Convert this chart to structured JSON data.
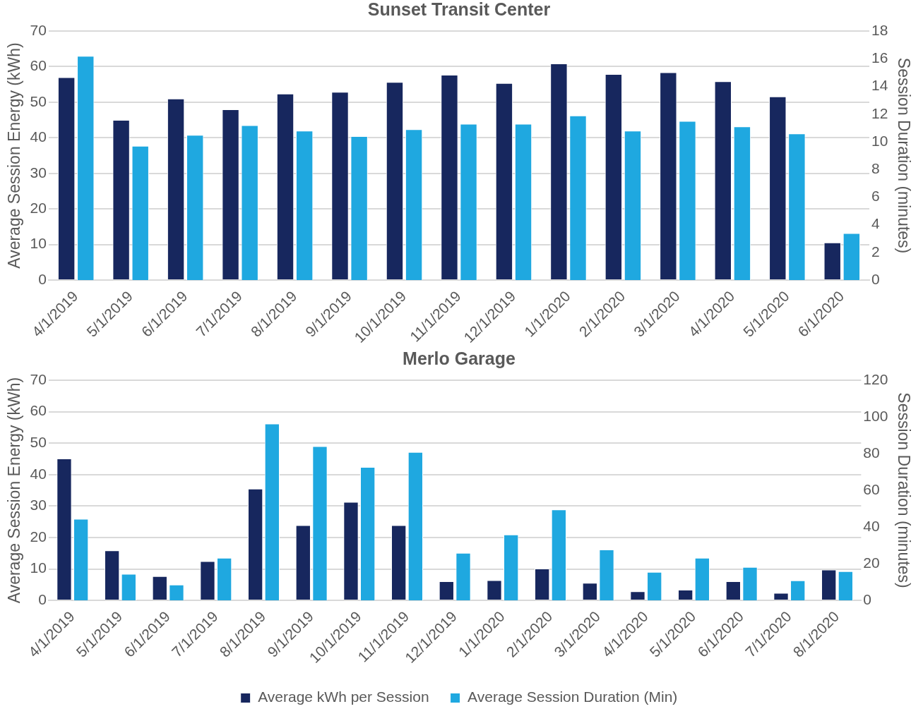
{
  "chart_data": [
    {
      "type": "bar",
      "title": "Sunset Transit Center",
      "ylabel": "Average Session Energy (kWh)",
      "y2label": "Session Duration (minutes)",
      "categories": [
        "4/1/2019",
        "5/1/2019",
        "6/1/2019",
        "7/1/2019",
        "8/1/2019",
        "9/1/2019",
        "10/1/2019",
        "11/1/2019",
        "12/1/2019",
        "1/1/2020",
        "2/1/2020",
        "3/1/2020",
        "4/1/2020",
        "5/1/2020",
        "6/1/2020"
      ],
      "series": [
        {
          "color": "#17275e",
          "values": [
            57,
            45,
            51,
            48,
            52.4,
            52.9,
            55.7,
            57.7,
            55.4,
            60.9,
            57.9,
            58.4,
            55.9,
            51.6,
            10.6
          ]
        },
        {
          "color": "#1fa8e0",
          "axis": "y2",
          "values": [
            16.2,
            9.7,
            10.5,
            11.2,
            10.8,
            10.4,
            10.9,
            11.3,
            11.3,
            11.9,
            10.8,
            11.5,
            11.1,
            10.6,
            3.4
          ]
        }
      ],
      "ylim": [
        0,
        70
      ],
      "yticks": [
        0,
        10,
        20,
        30,
        40,
        50,
        60,
        70
      ],
      "y2lim": [
        0,
        18
      ],
      "y2ticks": [
        0,
        2,
        4,
        6,
        8,
        10,
        12,
        14,
        16,
        18
      ],
      "grid": "y",
      "legend": false
    },
    {
      "type": "bar",
      "title": "Merlo Garage",
      "ylabel": "Average Session Energy (kWh)",
      "y2label": "Session Duration (minutes)",
      "categories": [
        "4/1/2019",
        "5/1/2019",
        "6/1/2019",
        "7/1/2019",
        "8/1/2019",
        "9/1/2019",
        "10/1/2019",
        "11/1/2019",
        "12/1/2019",
        "1/1/2020",
        "2/1/2020",
        "3/1/2020",
        "4/1/2020",
        "5/1/2020",
        "6/1/2020",
        "7/1/2020",
        "8/1/2020"
      ],
      "series": [
        {
          "name": "Average kWh per Session",
          "color": "#17275e",
          "values": [
            45.1,
            15.9,
            7.7,
            12.5,
            35.5,
            23.9,
            31.3,
            23.9,
            6.1,
            6.4,
            10.1,
            5.6,
            2.9,
            3.4,
            6.1,
            2.4,
            9.8
          ]
        },
        {
          "name": "Average Session Duration (Min)",
          "color": "#1fa8e0",
          "axis": "y2",
          "values": [
            44.5,
            14.5,
            8.6,
            23.2,
            96.4,
            84.1,
            72.7,
            80.9,
            25.9,
            35.9,
            49.5,
            27.7,
            15.5,
            23.2,
            18.2,
            10.9,
            15.9
          ]
        }
      ],
      "ylim": [
        0,
        70
      ],
      "yticks": [
        0,
        10,
        20,
        30,
        40,
        50,
        60,
        70
      ],
      "y2lim": [
        0,
        120
      ],
      "y2ticks": [
        0,
        20,
        40,
        60,
        80,
        100,
        120
      ],
      "grid": "y",
      "legend": "bottom"
    }
  ]
}
